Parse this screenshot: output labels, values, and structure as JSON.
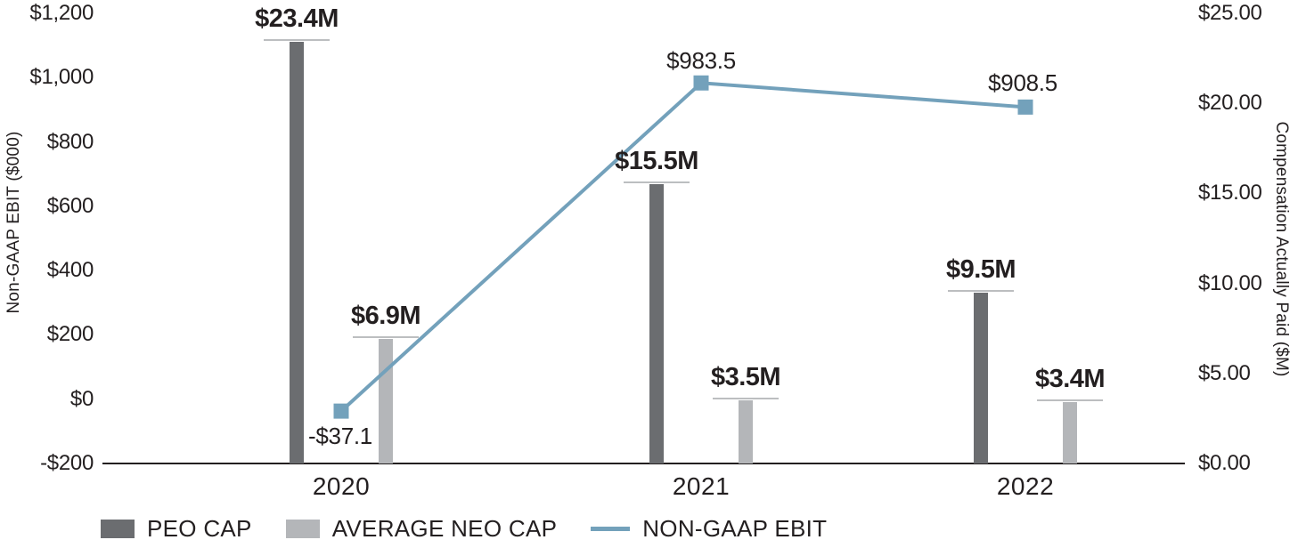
{
  "chart_data": {
    "type": "combo-bar-line",
    "categories": [
      "2020",
      "2021",
      "2022"
    ],
    "series": [
      {
        "name": "PEO CAP",
        "type": "bar",
        "axis": "right",
        "color": "#6b6d70",
        "values": [
          23.4,
          15.5,
          9.5
        ],
        "data_labels": [
          "$23.4M",
          "$15.5M",
          "$9.5M"
        ]
      },
      {
        "name": "AVERAGE NEO CAP",
        "type": "bar",
        "axis": "right",
        "color": "#b4b6b9",
        "values": [
          6.9,
          3.5,
          3.4
        ],
        "data_labels": [
          "$6.9M",
          "$3.5M",
          "$3.4M"
        ]
      },
      {
        "name": "NON-GAAP EBIT",
        "type": "line",
        "axis": "left",
        "color": "#73a1bb",
        "marker": "square",
        "values": [
          -37.1,
          983.5,
          908.5
        ],
        "data_labels": [
          "-$37.1",
          "$983.5",
          "$908.5"
        ]
      }
    ],
    "left_axis": {
      "title": "Non-GAAP EBIT ($000)",
      "min": -200,
      "max": 1200,
      "tick_values": [
        -200,
        0,
        200,
        400,
        600,
        800,
        1000,
        1200
      ],
      "tick_labels": [
        "-$200",
        "$0",
        "$200",
        "$400",
        "$600",
        "$800",
        "$1,000",
        "$1,200"
      ]
    },
    "right_axis": {
      "title": "Compensation Actually Paid ($M)",
      "min": 0,
      "max": 25,
      "tick_values": [
        0,
        5,
        10,
        15,
        20,
        25
      ],
      "tick_labels": [
        "$0.00",
        "$5.00",
        "$10.00",
        "$15.00",
        "$20.00",
        "$25.00"
      ]
    },
    "legend": {
      "position": "bottom-left",
      "entries": [
        "PEO CAP",
        "AVERAGE NEO CAP",
        "NON-GAAP EBIT"
      ]
    },
    "grid": "off",
    "background": "#ffffff",
    "label_cap_color": "#bcbec0",
    "axis_line_color": "#231f20"
  }
}
